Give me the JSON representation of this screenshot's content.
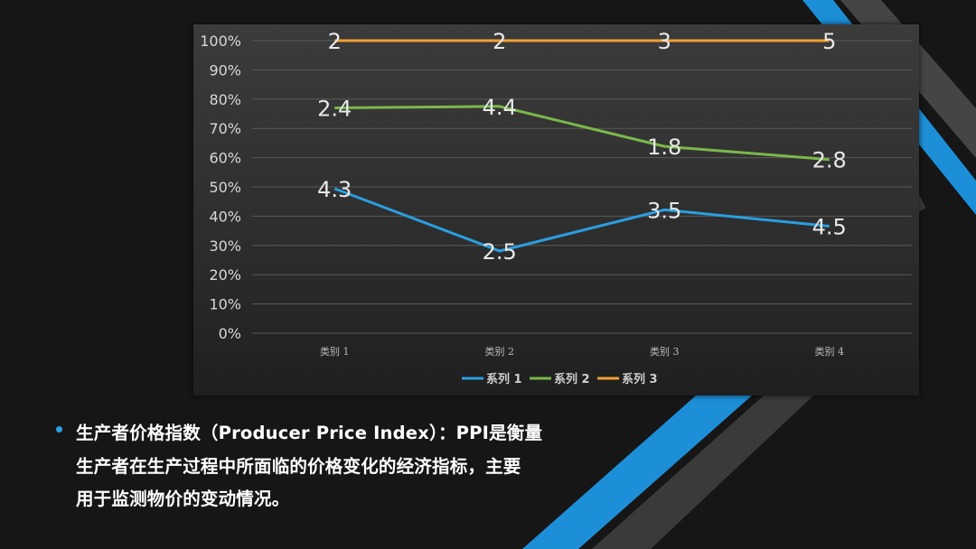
{
  "chart_data": {
    "type": "line",
    "stacked": "percent",
    "categories": [
      "类别 1",
      "类别 2",
      "类别 3",
      "类别 4"
    ],
    "series": [
      {
        "name": "系列 1",
        "color": "#2a9fe0",
        "values": [
          4.3,
          2.5,
          3.5,
          4.5
        ]
      },
      {
        "name": "系列 2",
        "color": "#7ab84a",
        "values": [
          2.4,
          4.4,
          1.8,
          2.8
        ]
      },
      {
        "name": "系列 3",
        "color": "#f0a030",
        "values": [
          2,
          2,
          3,
          5
        ]
      }
    ],
    "ylim": [
      0,
      100
    ],
    "yticks": [
      "0%",
      "10%",
      "20%",
      "30%",
      "40%",
      "50%",
      "60%",
      "70%",
      "80%",
      "90%",
      "100%"
    ],
    "grid": true,
    "legend": "bottom",
    "data_labels": true
  },
  "description": {
    "line1": "生产者价格指数（Producer Price Index）：PPI是衡量",
    "line2": "生产者在生产过程中所面临的价格变化的经济指标，主要",
    "line3": "用于监测物价的变动情况。"
  },
  "colors": {
    "accent_blue": "#1d8fd8",
    "stripe_gray": "#4a4a4a",
    "background": "#161616"
  }
}
